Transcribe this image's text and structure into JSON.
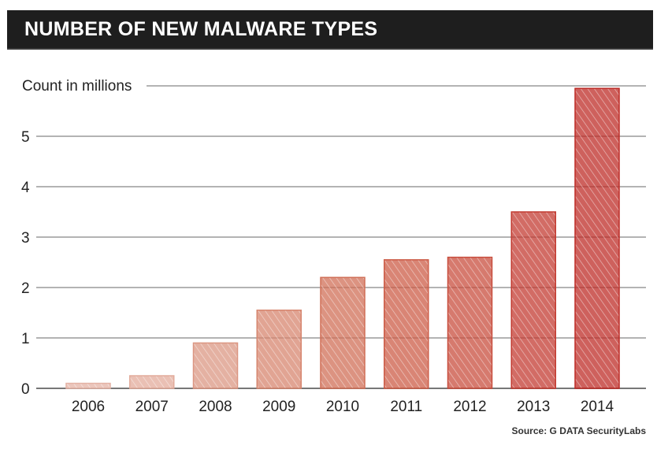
{
  "header": {
    "title": "NUMBER OF NEW MALWARE TYPES"
  },
  "chart_data": {
    "type": "bar",
    "title": "NUMBER OF NEW MALWARE TYPES",
    "ylabel": "Count in millions",
    "xlabel": "",
    "categories": [
      "2006",
      "2007",
      "2008",
      "2009",
      "2010",
      "2011",
      "2012",
      "2013",
      "2014"
    ],
    "values": [
      0.1,
      0.25,
      0.9,
      1.55,
      2.2,
      2.55,
      2.6,
      3.5,
      5.95
    ],
    "ylim": [
      0,
      6
    ],
    "yticks": [
      0,
      1,
      2,
      3,
      4,
      5
    ],
    "grid": true,
    "bar_colors": [
      "#e4b3a5",
      "#e2ab9b",
      "#db9682",
      "#d6856e",
      "#d06f57",
      "#cc5c47",
      "#c84d3d",
      "#c23b31",
      "#bd2c27"
    ]
  },
  "footer": {
    "source": "Source: G DATA SecurityLabs"
  }
}
